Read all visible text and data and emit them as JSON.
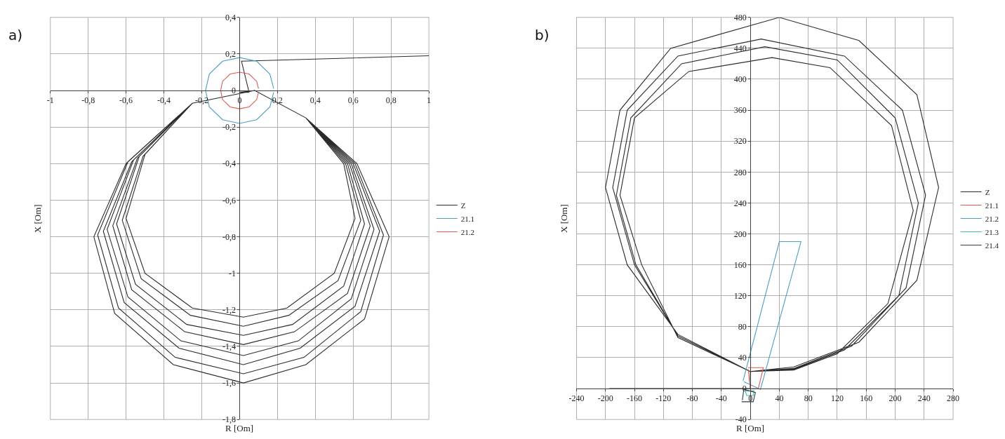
{
  "chart_data": [
    {
      "type": "line",
      "annotations": [
        "a)"
      ],
      "xlabel": "R [Om]",
      "ylabel": "X [Om]",
      "grid": true,
      "legend": "right",
      "marker": "none",
      "line_style": "solid",
      "xlim": [
        -1,
        1
      ],
      "ylim": [
        -1.8,
        0.4
      ],
      "xticks": [
        -1,
        {
          "value": -0.8,
          "label": "-0,8"
        },
        {
          "value": -0.6,
          "label": "-0,6"
        },
        {
          "value": -0.4,
          "label": "-0,4"
        },
        {
          "value": -0.2,
          "label": "-0,2"
        },
        0,
        {
          "value": 0.2,
          "label": "0,2"
        },
        {
          "value": 0.4,
          "label": "0,4"
        },
        {
          "value": 0.6,
          "label": "0,6"
        },
        {
          "value": 0.8,
          "label": "0,8"
        },
        1
      ],
      "yticks": [
        {
          "value": -1.8,
          "label": "-1,8"
        },
        {
          "value": -1.6,
          "label": "-1,6"
        },
        {
          "value": -1.4,
          "label": "-1,4"
        },
        {
          "value": -1.2,
          "label": "-1,2"
        },
        -1,
        {
          "value": -0.8,
          "label": "-0,8"
        },
        {
          "value": -0.6,
          "label": "-0,6"
        },
        {
          "value": -0.4,
          "label": "-0,4"
        },
        {
          "value": -0.2,
          "label": "-0,2"
        },
        0,
        {
          "value": 0.2,
          "label": "0,2"
        },
        {
          "value": 0.4,
          "label": "0,4"
        }
      ],
      "series": [
        {
          "name": "Z",
          "color": "#2b2b2b",
          "x": [
            1,
            0.01,
            0.05,
            0.0,
            0.08,
            0.35,
            0.55,
            0.61,
            0.5,
            0.25,
            0.02,
            -0.25,
            -0.5,
            -0.6,
            -0.5,
            -0.25,
            0.08,
            0.35,
            0.56,
            0.64,
            0.52,
            0.26,
            0.02,
            -0.26,
            -0.52,
            -0.62,
            -0.51,
            -0.25,
            0.08,
            0.35,
            0.57,
            0.66,
            0.55,
            0.28,
            0.02,
            -0.28,
            -0.55,
            -0.65,
            -0.53,
            -0.25,
            0.08,
            0.35,
            0.58,
            0.69,
            0.57,
            0.29,
            0.02,
            -0.29,
            -0.57,
            -0.67,
            -0.54,
            -0.25,
            0.08,
            0.35,
            0.59,
            0.71,
            0.59,
            0.31,
            0.02,
            -0.31,
            -0.59,
            -0.7,
            -0.56,
            -0.25,
            0.08,
            0.35,
            0.6,
            0.74,
            0.61,
            0.32,
            0.02,
            -0.32,
            -0.61,
            -0.72,
            -0.57,
            -0.25,
            0.08,
            0.35,
            0.61,
            0.76,
            0.64,
            0.34,
            0.02,
            -0.34,
            -0.64,
            -0.75,
            -0.59,
            -0.25,
            0.08,
            0.35,
            0.62,
            0.79,
            0.66,
            0.35,
            0.02,
            -0.35,
            -0.66,
            -0.77,
            -0.6,
            -0.25,
            0.08
          ],
          "values": [
            0.19,
            0.16,
            -0.01,
            -0.01,
            0,
            -0.15,
            -0.4,
            -0.7,
            -1.0,
            -1.19,
            -1.24,
            -1.19,
            -1.0,
            -0.7,
            -0.35,
            -0.07,
            0,
            -0.15,
            -0.4,
            -0.71,
            -1.04,
            -1.23,
            -1.29,
            -1.23,
            -1.03,
            -0.71,
            -0.36,
            -0.07,
            0,
            -0.15,
            -0.4,
            -0.73,
            -1.07,
            -1.28,
            -1.34,
            -1.28,
            -1.06,
            -0.73,
            -0.36,
            -0.07,
            0,
            -0.15,
            -0.4,
            -0.74,
            -1.11,
            -1.32,
            -1.39,
            -1.32,
            -1.09,
            -0.74,
            -0.37,
            -0.07,
            0,
            -0.15,
            -0.4,
            -0.76,
            -1.14,
            -1.37,
            -1.45,
            -1.37,
            -1.13,
            -0.76,
            -0.38,
            -0.07,
            0,
            -0.15,
            -0.4,
            -0.77,
            -1.18,
            -1.41,
            -1.5,
            -1.41,
            -1.16,
            -0.77,
            -0.39,
            -0.07,
            0,
            -0.15,
            -0.4,
            -0.79,
            -1.21,
            -1.46,
            -1.55,
            -1.46,
            -1.19,
            -0.79,
            -0.39,
            -0.07,
            0,
            -0.15,
            -0.4,
            -0.8,
            -1.25,
            -1.5,
            -1.6,
            -1.5,
            -1.22,
            -0.8,
            -0.4,
            -0.07,
            0
          ]
        },
        {
          "name": "21.1",
          "color": "#4a9fc4",
          "x": [
            0.18,
            0.16,
            0.09,
            0,
            -0.09,
            -0.16,
            -0.18,
            -0.16,
            -0.09,
            0,
            0.09,
            0.16,
            0.18
          ],
          "values": [
            0.01,
            0.09,
            0.16,
            0.18,
            0.16,
            0.09,
            0,
            -0.09,
            -0.16,
            -0.18,
            -0.16,
            -0.09,
            -0.01
          ]
        },
        {
          "name": "21.2",
          "color": "#e05a4f",
          "x": [
            0.1,
            0.09,
            0.05,
            0,
            -0.05,
            -0.09,
            -0.1,
            -0.09,
            -0.05,
            0,
            0.05,
            0.09,
            0.1
          ],
          "values": [
            0.01,
            0.05,
            0.09,
            0.1,
            0.09,
            0.05,
            0,
            -0.05,
            -0.09,
            -0.1,
            -0.09,
            -0.05,
            -0.01
          ]
        }
      ]
    },
    {
      "type": "line",
      "annotations": [
        "b)"
      ],
      "xlabel": "R [Om]",
      "ylabel": "X [Om]",
      "grid": true,
      "legend": "right",
      "marker": "none",
      "line_style": "solid",
      "xlim": [
        -240,
        280
      ],
      "ylim": [
        -40,
        480
      ],
      "xticks": [
        -240,
        -200,
        -160,
        -120,
        -80,
        -40,
        0,
        40,
        80,
        120,
        160,
        200,
        240,
        280
      ],
      "yticks": [
        -40,
        0,
        40,
        80,
        120,
        160,
        200,
        240,
        280,
        320,
        360,
        400,
        440,
        480
      ],
      "series": [
        {
          "name": "Z",
          "color": "#2b2b2b",
          "x": [
            -195,
            0,
            0,
            -100,
            -170,
            -200,
            -180,
            -110,
            40,
            150,
            230,
            260,
            230,
            150,
            60,
            0,
            -100,
            -160,
            -190,
            -170,
            -100,
            15,
            130,
            210,
            242,
            215,
            140,
            60,
            0,
            -100,
            -158,
            -185,
            -165,
            -95,
            20,
            120,
            200,
            232,
            205,
            130,
            60,
            0,
            -100,
            -150,
            -180,
            -160,
            -85,
            30,
            110,
            195,
            225,
            190,
            120,
            60,
            0
          ],
          "values": [
            0,
            0,
            22,
            70,
            160,
            260,
            360,
            440,
            480,
            450,
            380,
            260,
            140,
            60,
            28,
            22,
            68,
            160,
            260,
            360,
            430,
            452,
            430,
            360,
            250,
            130,
            55,
            26,
            22,
            68,
            160,
            250,
            350,
            420,
            442,
            425,
            350,
            240,
            120,
            50,
            25,
            22,
            66,
            160,
            250,
            350,
            410,
            428,
            415,
            340,
            230,
            110,
            45,
            24,
            22
          ]
        },
        {
          "name": "21.1",
          "color": "#e05a4f",
          "x": [
            -3,
            18,
            11,
            0,
            -3
          ],
          "values": [
            27,
            27,
            0,
            0,
            25
          ]
        },
        {
          "name": "21.2",
          "color": "#4a9fc4",
          "x": [
            -10,
            40,
            70,
            14,
            -9
          ],
          "values": [
            10,
            190,
            190,
            -1,
            9
          ]
        },
        {
          "name": "21.3",
          "color": "#3fbf9f",
          "x": [
            -7,
            -5,
            4,
            5,
            -6
          ],
          "values": [
            -3,
            -9,
            -9,
            -3,
            -3
          ]
        },
        {
          "name": "21.4",
          "color": "#2d3e50",
          "x": [
            -12,
            4,
            7,
            -9,
            -11
          ],
          "values": [
            -17,
            -17,
            -5,
            -1,
            -15
          ]
        }
      ]
    }
  ]
}
